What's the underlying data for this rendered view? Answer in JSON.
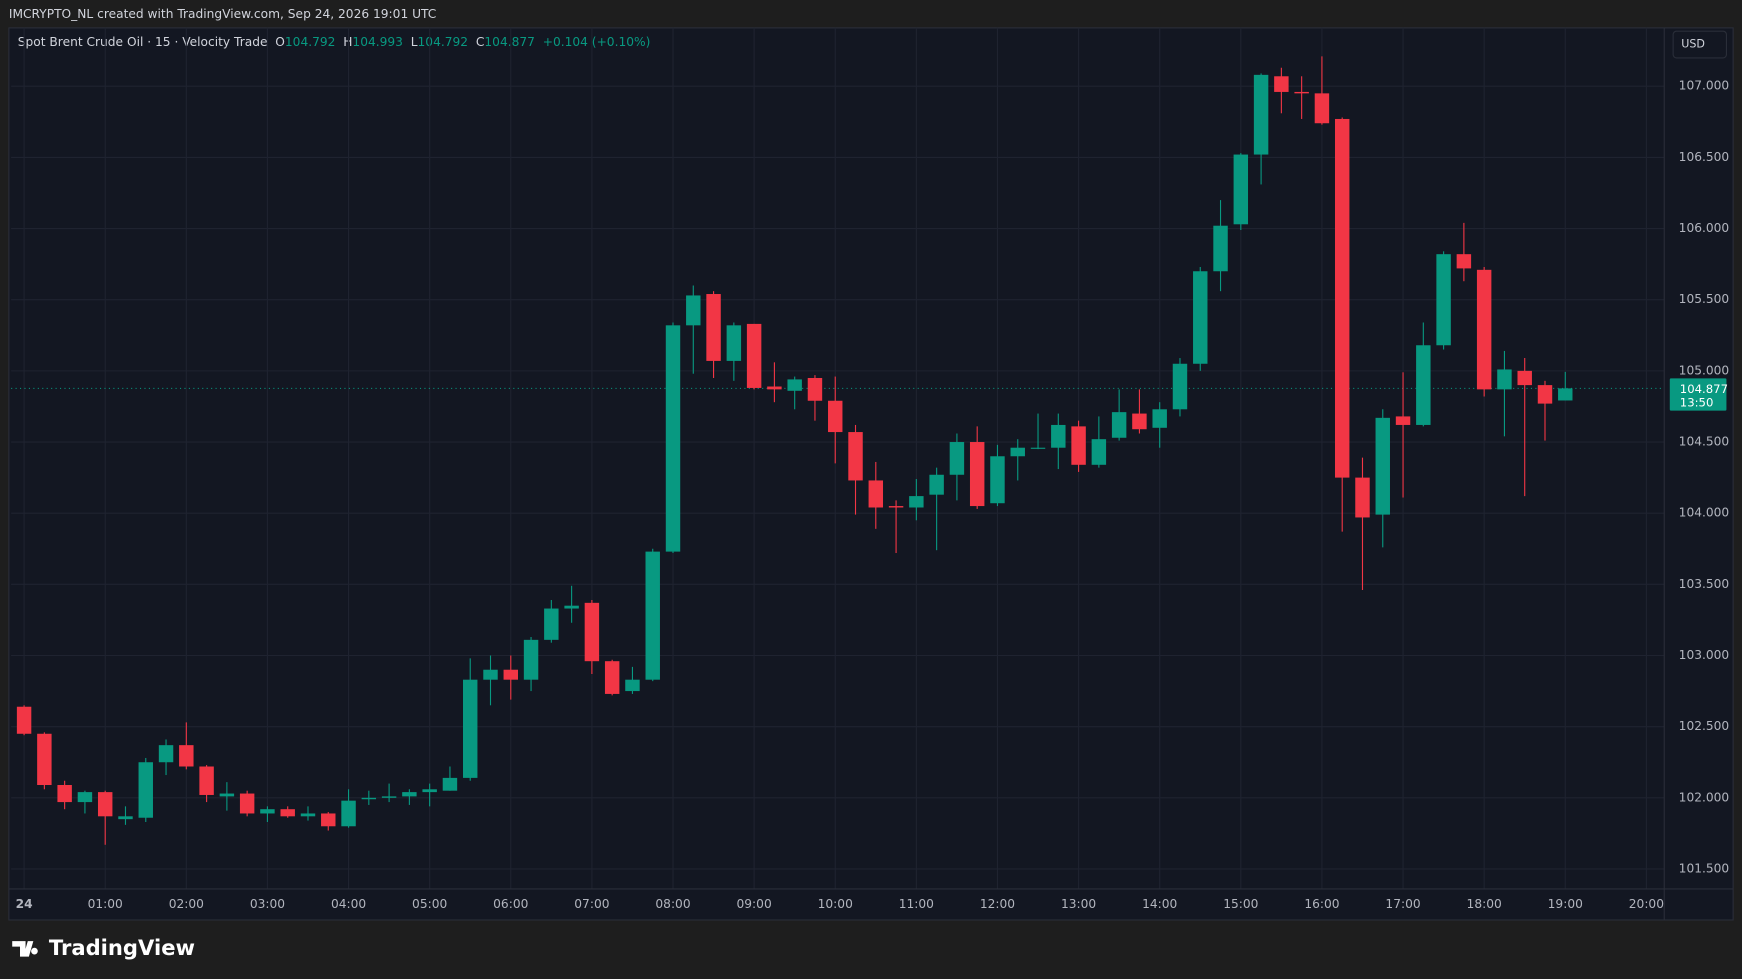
{
  "header": {
    "attribution": "IMCRYPTO_NL created with TradingView.com, Sep 24, 2026 19:01 UTC"
  },
  "footer": {
    "logo": "TradingView"
  },
  "chart_data": {
    "type": "candlestick",
    "title": "Spot Brent Crude Oil · 15 · Velocity Trade",
    "ohlc_labels": {
      "open": "O",
      "high": "H",
      "low": "L",
      "close": "C"
    },
    "change": "+0.104 (+0.10%)",
    "currency": "USD",
    "countdown": "13:50",
    "up_color": "#089981",
    "down_color": "#f23645",
    "grid": true,
    "x": [
      0,
      0.25,
      0.5,
      0.75,
      1,
      1.25,
      1.5,
      1.75,
      2,
      2.25,
      2.5,
      2.75,
      3,
      3.25,
      3.5,
      3.75,
      4,
      4.25,
      4.5,
      4.75,
      5,
      5.25,
      5.5,
      5.75,
      6,
      6.25,
      6.5,
      6.75,
      7,
      7.25,
      7.5,
      7.75,
      8,
      8.25,
      8.5,
      8.75,
      9,
      9.25,
      9.5,
      9.75,
      10,
      10.25,
      10.5,
      10.75,
      11,
      11.25,
      11.5,
      11.75,
      12,
      12.25,
      12.5,
      12.75,
      13,
      13.25,
      13.5,
      13.75,
      14,
      14.25,
      14.5,
      14.75,
      15,
      15.25,
      15.5,
      15.75,
      16,
      16.25,
      16.5,
      16.75,
      17,
      17.25,
      17.5,
      17.75,
      18,
      18.25,
      18.5,
      18.75,
      19
    ],
    "open": [
      102.64,
      102.45,
      102.09,
      101.97,
      102.04,
      101.85,
      101.86,
      102.25,
      102.37,
      102.22,
      102.01,
      102.03,
      101.89,
      101.92,
      101.87,
      101.89,
      101.8,
      101.99,
      102.0,
      102.01,
      102.04,
      102.05,
      102.14,
      102.83,
      102.9,
      102.83,
      103.11,
      103.33,
      103.37,
      102.96,
      102.75,
      102.83,
      103.73,
      105.32,
      105.54,
      105.07,
      105.33,
      104.89,
      104.86,
      104.95,
      104.79,
      104.57,
      104.23,
      104.05,
      104.04,
      104.13,
      104.27,
      104.5,
      104.07,
      104.4,
      104.46,
      104.46,
      104.61,
      104.34,
      104.53,
      104.7,
      104.6,
      104.73,
      105.05,
      105.7,
      106.03,
      106.52,
      107.07,
      106.96,
      106.95,
      106.77,
      104.25,
      103.99,
      104.68,
      104.62,
      105.18,
      105.82,
      105.71,
      104.87,
      105.0,
      104.9,
      104.792
    ],
    "high": [
      102.65,
      102.46,
      102.12,
      102.05,
      102.05,
      101.94,
      102.28,
      102.41,
      102.53,
      102.23,
      102.11,
      102.05,
      101.94,
      101.94,
      101.94,
      101.9,
      102.06,
      102.05,
      102.1,
      102.06,
      102.1,
      102.22,
      102.98,
      103.0,
      103.0,
      103.13,
      103.39,
      103.49,
      103.39,
      102.97,
      102.92,
      103.75,
      105.34,
      105.6,
      105.56,
      105.34,
      105.33,
      105.06,
      104.96,
      104.97,
      104.96,
      104.62,
      104.36,
      104.09,
      104.24,
      104.32,
      104.56,
      104.61,
      104.48,
      104.52,
      104.7,
      104.7,
      104.65,
      104.68,
      104.87,
      104.87,
      104.78,
      105.09,
      105.73,
      106.2,
      106.53,
      107.09,
      107.13,
      107.07,
      107.21,
      106.78,
      104.39,
      104.73,
      104.99,
      105.34,
      105.84,
      106.04,
      105.73,
      105.14,
      105.09,
      104.93,
      104.993
    ],
    "low": [
      102.44,
      102.06,
      101.92,
      101.89,
      101.67,
      101.81,
      101.83,
      102.16,
      102.2,
      101.97,
      101.91,
      101.87,
      101.83,
      101.86,
      101.84,
      101.77,
      101.79,
      101.95,
      101.97,
      101.95,
      101.94,
      102.05,
      102.12,
      102.65,
      102.69,
      102.75,
      103.09,
      103.23,
      102.87,
      102.72,
      102.73,
      102.82,
      103.72,
      104.98,
      104.95,
      104.93,
      104.87,
      104.78,
      104.73,
      104.65,
      104.35,
      103.99,
      103.89,
      103.72,
      103.95,
      103.74,
      104.09,
      104.03,
      104.05,
      104.23,
      104.45,
      104.31,
      104.29,
      104.32,
      104.51,
      104.56,
      104.46,
      104.68,
      105.0,
      105.56,
      105.99,
      106.31,
      106.81,
      106.77,
      106.73,
      103.87,
      103.46,
      103.76,
      104.11,
      104.61,
      105.15,
      105.63,
      104.82,
      104.54,
      104.12,
      104.51,
      104.792
    ],
    "close": [
      102.45,
      102.09,
      101.97,
      102.04,
      101.87,
      101.87,
      102.25,
      102.37,
      102.22,
      102.02,
      102.03,
      101.89,
      101.92,
      101.87,
      101.89,
      101.8,
      101.98,
      102.0,
      102.01,
      102.04,
      102.06,
      102.14,
      102.83,
      102.9,
      102.83,
      103.11,
      103.33,
      103.35,
      102.96,
      102.73,
      102.83,
      103.73,
      105.32,
      105.53,
      105.07,
      105.32,
      104.88,
      104.87,
      104.94,
      104.79,
      104.57,
      104.23,
      104.04,
      104.04,
      104.12,
      104.27,
      104.5,
      104.05,
      104.4,
      104.46,
      104.46,
      104.62,
      104.34,
      104.52,
      104.71,
      104.59,
      104.73,
      105.05,
      105.7,
      106.02,
      106.52,
      107.08,
      106.96,
      106.95,
      106.74,
      104.25,
      103.97,
      104.67,
      104.62,
      105.18,
      105.82,
      105.72,
      104.87,
      105.01,
      104.9,
      104.77,
      104.877
    ],
    "xlim": [
      -0.16,
      20.22
    ],
    "xticks": [
      {
        "value": 0,
        "label": "24"
      },
      {
        "value": 1,
        "label": "01:00"
      },
      {
        "value": 2,
        "label": "02:00"
      },
      {
        "value": 3,
        "label": "03:00"
      },
      {
        "value": 4,
        "label": "04:00"
      },
      {
        "value": 5,
        "label": "05:00"
      },
      {
        "value": 6,
        "label": "06:00"
      },
      {
        "value": 7,
        "label": "07:00"
      },
      {
        "value": 8,
        "label": "08:00"
      },
      {
        "value": 9,
        "label": "09:00"
      },
      {
        "value": 10,
        "label": "10:00"
      },
      {
        "value": 11,
        "label": "11:00"
      },
      {
        "value": 12,
        "label": "12:00"
      },
      {
        "value": 13,
        "label": "13:00"
      },
      {
        "value": 14,
        "label": "14:00"
      },
      {
        "value": 15,
        "label": "15:00"
      },
      {
        "value": 16,
        "label": "16:00"
      },
      {
        "value": 17,
        "label": "17:00"
      },
      {
        "value": 18,
        "label": "18:00"
      },
      {
        "value": 19,
        "label": "19:00"
      },
      {
        "value": 20,
        "label": "20:00"
      }
    ],
    "ylim": [
      101.36,
      107.41
    ],
    "yticks": [
      {
        "value": 101.5,
        "label": "101.500"
      },
      {
        "value": 102,
        "label": "102.000"
      },
      {
        "value": 102.5,
        "label": "102.500"
      },
      {
        "value": 103,
        "label": "103.000"
      },
      {
        "value": 103.5,
        "label": "103.500"
      },
      {
        "value": 104,
        "label": "104.000"
      },
      {
        "value": 104.5,
        "label": "104.500"
      },
      {
        "value": 105,
        "label": "105.000"
      },
      {
        "value": 105.5,
        "label": "105.500"
      },
      {
        "value": 106,
        "label": "106.000"
      },
      {
        "value": 106.5,
        "label": "106.500"
      },
      {
        "value": 107,
        "label": "107.000"
      }
    ]
  }
}
